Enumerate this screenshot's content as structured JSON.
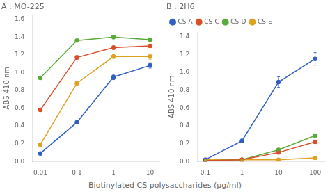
{
  "chart_data": [
    {
      "type": "line",
      "title": "A : MO-225",
      "ylabel": "ABS 410 nm",
      "log": "x",
      "grid": false,
      "marker": "circle",
      "x": [
        0.01,
        0.1,
        1,
        10
      ],
      "series": [
        {
          "name": "CS-A",
          "color": "#3060c0",
          "values": [
            0.09,
            0.44,
            0.95,
            1.08
          ],
          "yerr": [
            0.01,
            0.02,
            0.03,
            0.03
          ]
        },
        {
          "name": "CS-C",
          "color": "#d94f2a",
          "values": [
            0.58,
            1.17,
            1.28,
            1.3
          ],
          "yerr": [
            0.01,
            0.02,
            0.02,
            0.02
          ]
        },
        {
          "name": "CS-D",
          "color": "#5aaa3a",
          "values": [
            0.94,
            1.36,
            1.4,
            1.37
          ],
          "yerr": [
            0.01,
            0.01,
            0.02,
            0.02
          ]
        },
        {
          "name": "CS-E",
          "color": "#e0a020",
          "values": [
            0.19,
            0.88,
            1.18,
            1.18
          ],
          "yerr": [
            0.01,
            0.02,
            0.02,
            0.03
          ]
        }
      ],
      "xlim": [
        0.006,
        18
      ],
      "xticks": [
        0.01,
        0.1,
        1,
        10
      ],
      "ylim": [
        0,
        1.65
      ],
      "yticks": [
        {
          "value": 0,
          "label": "0.0"
        },
        0.2,
        0.4,
        0.6,
        0.8,
        {
          "value": 1,
          "label": "1.0"
        },
        1.2,
        1.4,
        1.6
      ]
    },
    {
      "type": "line",
      "title": "B : 2H6",
      "ylabel": "ABS 410 nm",
      "log": "x",
      "grid": false,
      "marker": "circle",
      "legend": "upper left",
      "x": [
        0.1,
        1,
        10,
        100
      ],
      "series": [
        {
          "name": "CS-A",
          "color": "#3060c0",
          "values": [
            0.02,
            0.23,
            0.89,
            1.15
          ],
          "yerr": [
            0.01,
            0.02,
            0.06,
            0.07
          ]
        },
        {
          "name": "CS-C",
          "color": "#d94f2a",
          "values": [
            0.01,
            0.02,
            0.1,
            0.22
          ],
          "yerr": [
            0.005,
            0.005,
            0.01,
            0.02
          ]
        },
        {
          "name": "CS-D",
          "color": "#5aaa3a",
          "values": [
            0.01,
            0.02,
            0.13,
            0.29
          ],
          "yerr": [
            0.005,
            0.005,
            0.01,
            0.02
          ]
        },
        {
          "name": "CS-E",
          "color": "#e0a020",
          "values": [
            0.02,
            0.02,
            0.02,
            0.04
          ],
          "yerr": [
            0.005,
            0.005,
            0.005,
            0.005
          ]
        }
      ],
      "xlim": [
        0.06,
        180
      ],
      "xticks": [
        0.1,
        1,
        10,
        100
      ],
      "ylim": [
        0,
        1.45
      ],
      "yticks": [
        {
          "value": 0,
          "label": "0.0"
        },
        0.2,
        0.4,
        0.6,
        0.8,
        {
          "value": 1,
          "label": "1.0"
        },
        1.2,
        1.4
      ]
    }
  ],
  "xlabel": "Biotinylated CS polysaccharides (μg/ml)"
}
